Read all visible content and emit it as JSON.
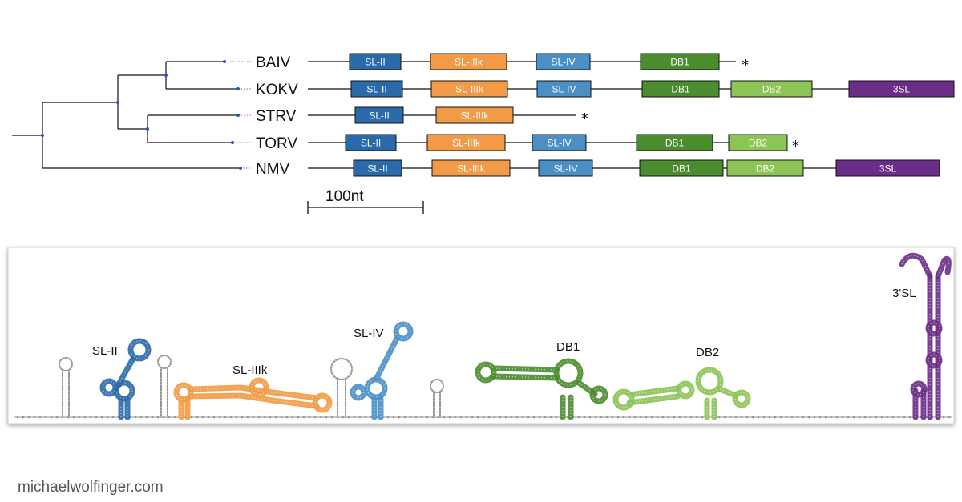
{
  "colors": {
    "SL-II": "#2a6aaa",
    "SL-IIIk": "#f29a45",
    "SL-IV": "#4a8fc5",
    "DB1": "#4a8c2e",
    "DB2": "#8cc455",
    "3SL": "#6b2d8a"
  },
  "taxa": [
    {
      "name": "BAIV",
      "star": "*",
      "elements": [
        {
          "label": "SL-II",
          "type": "SL-II"
        },
        {
          "label": "SL-IIIk",
          "type": "SL-IIIk"
        },
        {
          "label": "SL-IV",
          "type": "SL-IV"
        },
        {
          "label": "DB1",
          "type": "DB1"
        }
      ]
    },
    {
      "name": "KOKV",
      "star": "",
      "elements": [
        {
          "label": "SL-II",
          "type": "SL-II"
        },
        {
          "label": "SL-IIIk",
          "type": "SL-IIIk"
        },
        {
          "label": "SL-IV",
          "type": "SL-IV"
        },
        {
          "label": "DB1",
          "type": "DB1"
        },
        {
          "label": "DB2",
          "type": "DB2"
        },
        {
          "label": "3SL",
          "type": "3SL"
        }
      ]
    },
    {
      "name": "STRV",
      "star": "*",
      "elements": [
        {
          "label": "SL-II",
          "type": "SL-II"
        },
        {
          "label": "SL-IIIk",
          "type": "SL-IIIk"
        }
      ]
    },
    {
      "name": "TORV",
      "star": "*",
      "elements": [
        {
          "label": "SL-II",
          "type": "SL-II"
        },
        {
          "label": "SL-IIIk",
          "type": "SL-IIIk"
        },
        {
          "label": "SL-IV",
          "type": "SL-IV"
        },
        {
          "label": "DB1",
          "type": "DB1"
        },
        {
          "label": "DB2",
          "type": "DB2"
        }
      ]
    },
    {
      "name": "NMV",
      "star": "",
      "elements": [
        {
          "label": "SL-II",
          "type": "SL-II"
        },
        {
          "label": "SL-IIIk",
          "type": "SL-IIIk"
        },
        {
          "label": "SL-IV",
          "type": "SL-IV"
        },
        {
          "label": "DB1",
          "type": "DB1"
        },
        {
          "label": "DB2",
          "type": "DB2"
        },
        {
          "label": "3SL",
          "type": "3SL"
        }
      ]
    }
  ],
  "scale_label": "100nt",
  "structure_labels": {
    "sl2": "SL-II",
    "sl3k": "SL-IIIk",
    "sl4": "SL-IV",
    "db1": "DB1",
    "db2": "DB2",
    "sl3p": "3'SL"
  },
  "footer": "michaelwolfinger.com"
}
